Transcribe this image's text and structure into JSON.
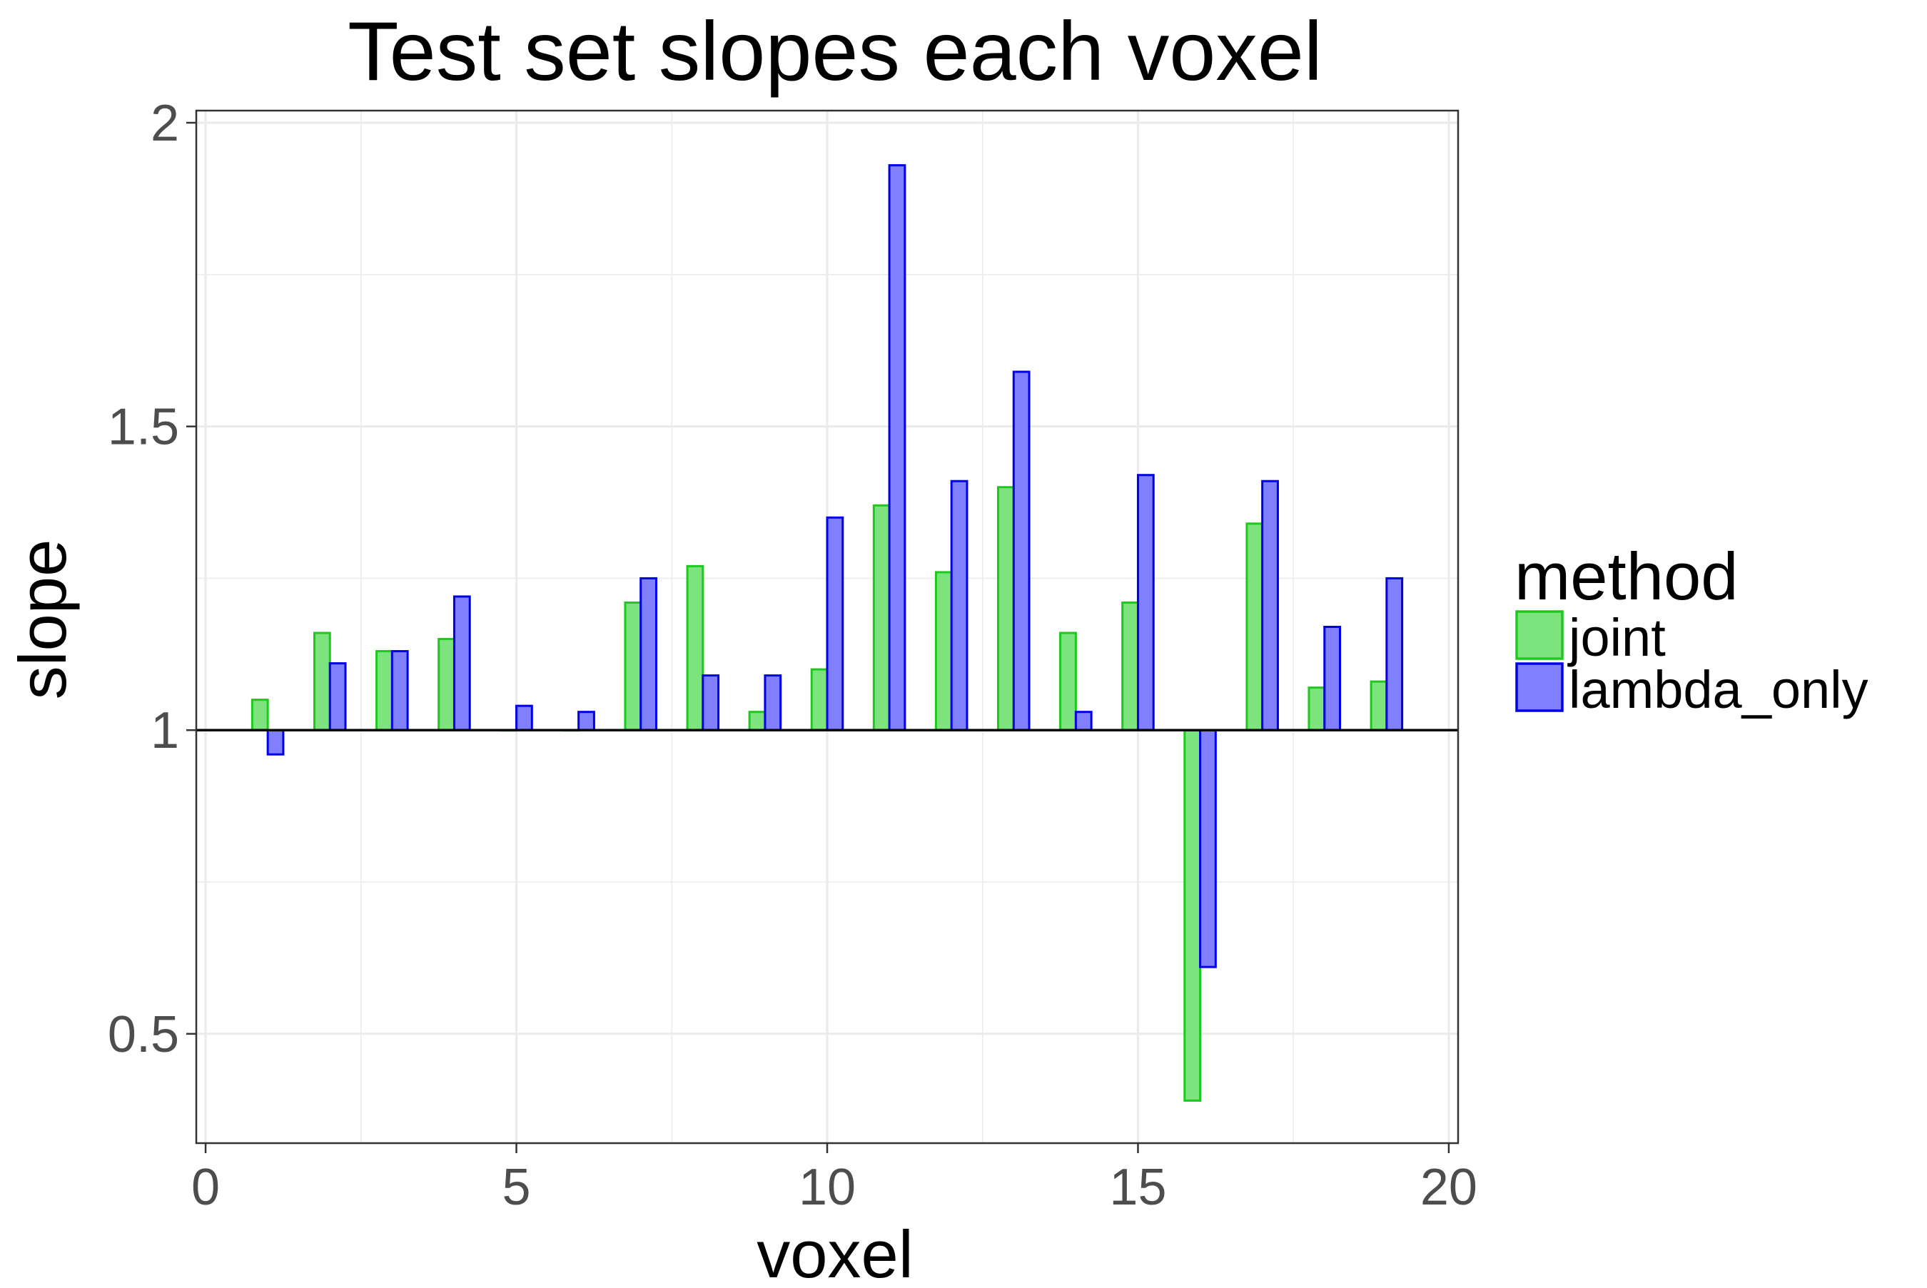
{
  "chart_data": {
    "type": "bar",
    "title": "Test set slopes each voxel",
    "xlabel": "voxel",
    "ylabel": "slope",
    "xlim": [
      -0.15,
      20.15
    ],
    "ylim": [
      0.32,
      2.02
    ],
    "baseline": 1,
    "x_ticks": [
      0,
      5,
      10,
      15,
      20
    ],
    "x_tick_labels": [
      "0",
      "5",
      "10",
      "15",
      "20"
    ],
    "y_ticks": [
      0.5,
      1,
      1.5,
      2
    ],
    "y_tick_labels": [
      "0.5",
      "1",
      "1.5",
      "2"
    ],
    "grid": true,
    "legend_position": "right",
    "legend_title": "method",
    "categories": [
      1,
      2,
      3,
      4,
      5,
      6,
      7,
      8,
      9,
      10,
      11,
      12,
      13,
      14,
      15,
      16,
      17,
      18,
      19
    ],
    "series": [
      {
        "name": "joint",
        "fill": "#7de37d",
        "stroke": "#1ec81e",
        "values": [
          1.05,
          1.16,
          1.13,
          1.15,
          1.0,
          1.0,
          1.21,
          1.27,
          1.03,
          1.1,
          1.37,
          1.26,
          1.4,
          1.16,
          1.21,
          0.39,
          1.34,
          1.07,
          1.08
        ]
      },
      {
        "name": "lambda_only",
        "fill": "#8080ff",
        "stroke": "#0000e6",
        "values": [
          0.96,
          1.11,
          1.13,
          1.22,
          1.04,
          1.03,
          1.25,
          1.09,
          1.09,
          1.35,
          1.93,
          1.41,
          1.59,
          1.03,
          1.42,
          0.61,
          1.41,
          1.17,
          1.25
        ]
      }
    ]
  }
}
